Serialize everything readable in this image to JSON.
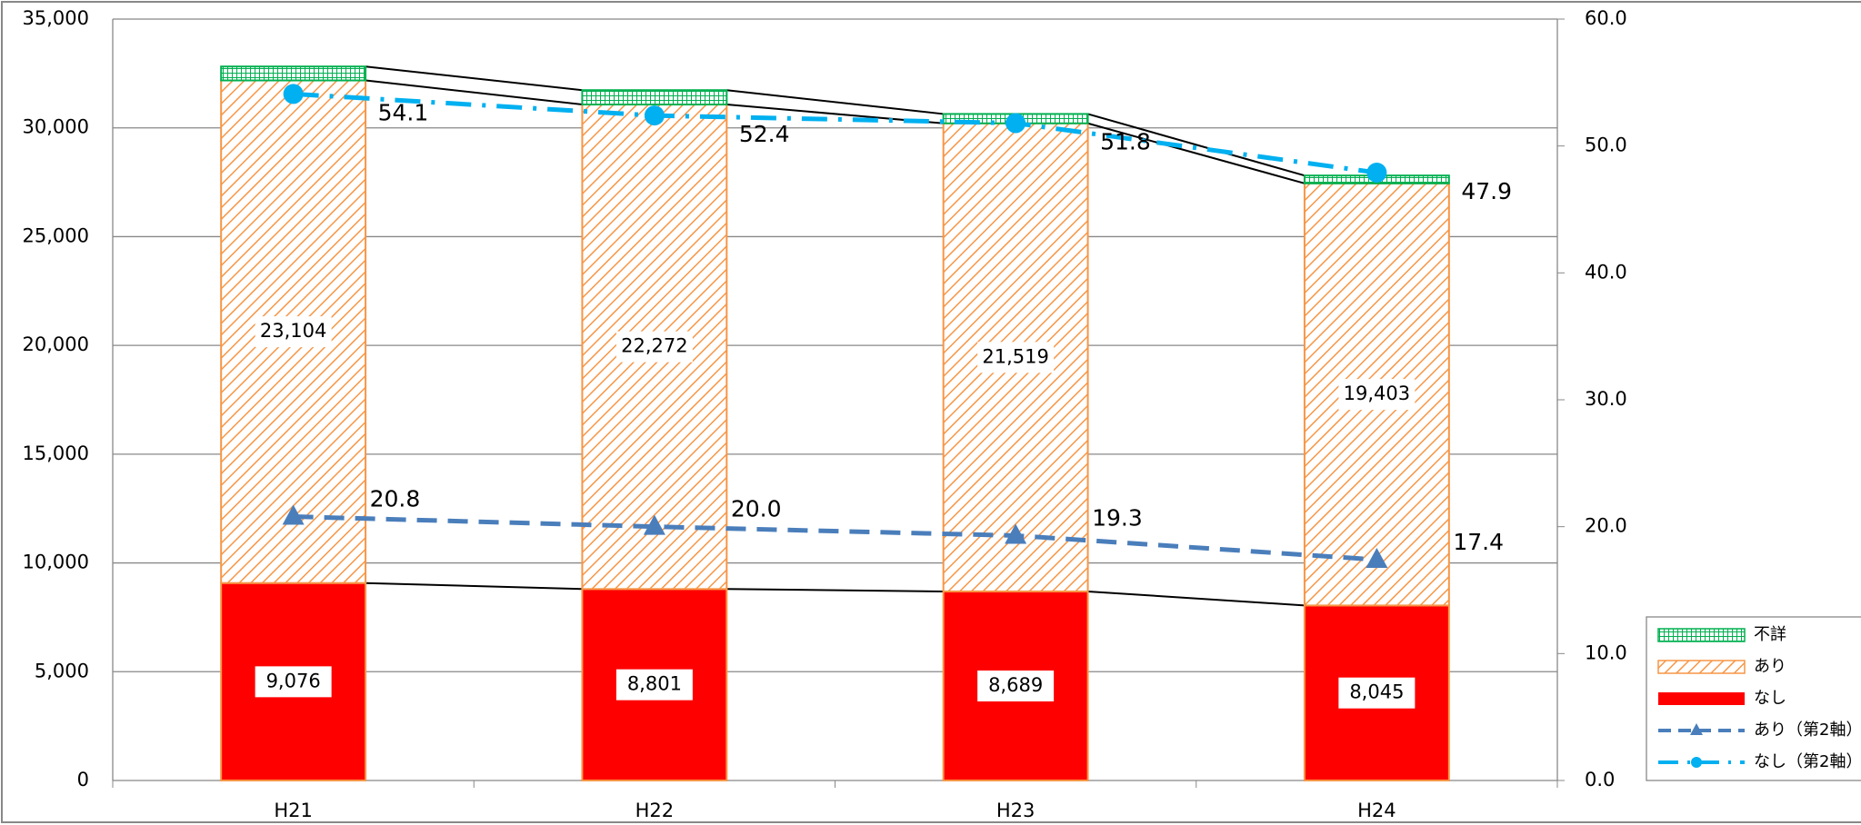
{
  "chart_data": {
    "type": "bar",
    "stacked": true,
    "categories": [
      "H21",
      "H22",
      "H23",
      "H24"
    ],
    "series": [
      {
        "name": "なし",
        "color": "#ff0000",
        "values": [
          9076,
          8801,
          8689,
          8045
        ],
        "value_labels": [
          "9,076",
          "8,801",
          "8,689",
          "8,045"
        ]
      },
      {
        "name": "あり",
        "color": "#f79646",
        "pattern": "hatch",
        "values": [
          23104,
          22272,
          21519,
          19403
        ],
        "value_labels": [
          "23,104",
          "22,272",
          "21,519",
          "19,403"
        ]
      },
      {
        "name": "不詳",
        "color": "#00b050",
        "pattern": "grid",
        "values": [
          640,
          660,
          430,
          360
        ]
      },
      {
        "name": "あり（第2軸）",
        "type": "line",
        "axis": "y2",
        "color": "#4a7ebb",
        "dash": "dash",
        "marker": "triangle",
        "label_color": "#2e75b6",
        "values": [
          20.8,
          20,
          19.3,
          17.4
        ],
        "value_labels": [
          "20.8",
          "20.0",
          "19.3",
          "17.4"
        ]
      },
      {
        "name": "なし（第2軸）",
        "type": "line",
        "axis": "y2",
        "color": "#00b0f0",
        "dash": "dashdot",
        "marker": "circle",
        "label_color": "#00b0f0",
        "values": [
          54.1,
          52.4,
          51.8,
          47.9
        ],
        "value_labels": [
          "54.1",
          "52.4",
          "51.8",
          "47.9"
        ]
      }
    ],
    "ylim": [
      0,
      35000
    ],
    "yticks": [
      0,
      {
        "value": 5000,
        "label": "5,000"
      },
      {
        "value": 10000,
        "label": "10,000"
      },
      {
        "value": 15000,
        "label": "15,000"
      },
      {
        "value": 20000,
        "label": "20,000"
      },
      {
        "value": 25000,
        "label": "25,000"
      },
      {
        "value": 30000,
        "label": "30,000"
      },
      {
        "value": 35000,
        "label": "35,000"
      }
    ],
    "y2lim": [
      0,
      60
    ],
    "y2ticks": [
      {
        "value": 0,
        "label": "0.0"
      },
      {
        "value": 10,
        "label": "10.0"
      },
      {
        "value": 20,
        "label": "20.0"
      },
      {
        "value": 30,
        "label": "30.0"
      },
      {
        "value": 40,
        "label": "40.0"
      },
      {
        "value": 50,
        "label": "50.0"
      },
      {
        "value": 60,
        "label": "60.0"
      }
    ],
    "grid": true,
    "legend": "right"
  }
}
